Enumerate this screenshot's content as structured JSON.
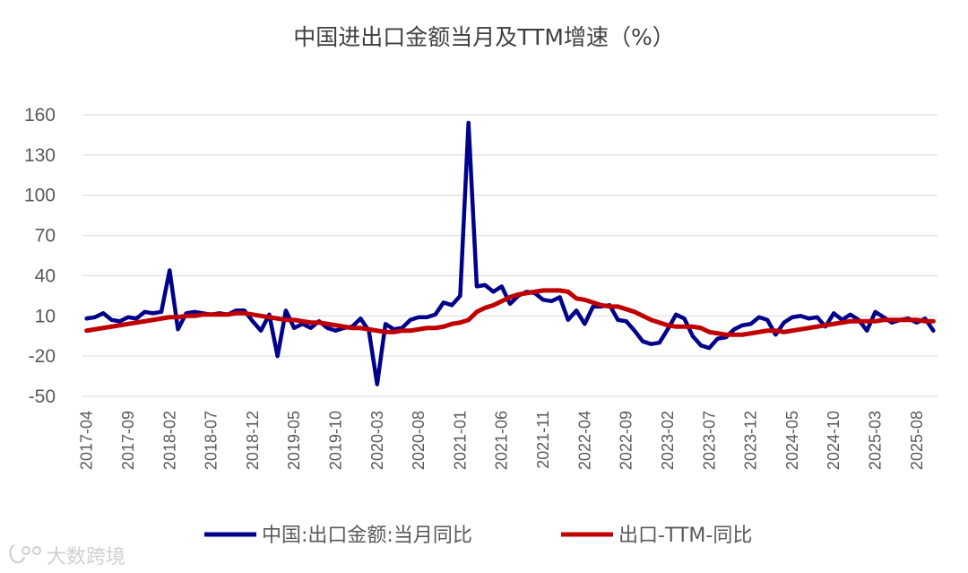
{
  "chart_data": {
    "type": "line",
    "title": "中国进出口金额当月及TTM增速（%）",
    "ylim": [
      -50,
      160
    ],
    "yticks": [
      160,
      130,
      100,
      70,
      40,
      10,
      -20,
      -50
    ],
    "grid": true,
    "legend_position": "bottom",
    "x_tick_labels": [
      "2017-04",
      "2017-09",
      "2018-02",
      "2018-07",
      "2018-12",
      "2019-05",
      "2019-10",
      "2020-03",
      "2020-08",
      "2021-01",
      "2021-06",
      "2021-11",
      "2022-04",
      "2022-09",
      "2023-02",
      "2023-07",
      "2023-12",
      "2024-05",
      "2024-10",
      "2025-03",
      "2025-08"
    ],
    "x_start": "2017-04",
    "x_end": "2025-10",
    "series": [
      {
        "name": "中国:出口金额:当月同比",
        "color": "#00008B",
        "values": [
          8,
          9,
          12,
          7,
          6,
          9,
          8,
          13,
          12,
          13,
          44,
          0,
          12,
          13,
          12,
          11,
          12,
          11,
          14,
          14,
          6,
          -1,
          11,
          -20,
          14,
          1,
          4,
          1,
          6,
          1,
          -1,
          1,
          2,
          8,
          -1,
          -41,
          4,
          0,
          1,
          7,
          9,
          9,
          11,
          20,
          18,
          25,
          154,
          32,
          33,
          28,
          32,
          19,
          25,
          28,
          27,
          22,
          21,
          24,
          7,
          14,
          4,
          17,
          17,
          18,
          7,
          6,
          -1,
          -9,
          -11,
          -10,
          0,
          11,
          8,
          -5,
          -12,
          -14,
          -7,
          -6,
          0,
          3,
          4,
          9,
          7,
          -4,
          5,
          9,
          10,
          8,
          9,
          2,
          12,
          7,
          11,
          7,
          -1,
          13,
          9,
          5,
          7,
          8,
          5,
          8,
          -1
        ],
        "x_start": "2017-04"
      },
      {
        "name": "出口-TTM-同比",
        "color": "#C00000",
        "values": [
          -1,
          0,
          1,
          2,
          3,
          4,
          5,
          6,
          7,
          8,
          9,
          9,
          10,
          10,
          11,
          11,
          11,
          11,
          12,
          12,
          11,
          10,
          9,
          8,
          7,
          7,
          6,
          5,
          5,
          4,
          3,
          2,
          1,
          1,
          0,
          -1,
          -2,
          -2,
          -1,
          -1,
          0,
          1,
          1,
          2,
          4,
          5,
          7,
          13,
          16,
          18,
          21,
          24,
          26,
          27,
          28,
          29,
          29,
          29,
          28,
          23,
          22,
          20,
          18,
          17,
          17,
          15,
          13,
          10,
          7,
          5,
          3,
          2,
          2,
          2,
          1,
          -2,
          -3,
          -4,
          -4,
          -4,
          -3,
          -2,
          -1,
          -1,
          -2,
          -1,
          0,
          1,
          2,
          3,
          4,
          5,
          6,
          6,
          6,
          6,
          7,
          7,
          7,
          7,
          7,
          6,
          6
        ],
        "x_start": "2017-04"
      }
    ]
  },
  "watermark": {
    "text": "大数跨境",
    "icon": "logo-icon"
  }
}
